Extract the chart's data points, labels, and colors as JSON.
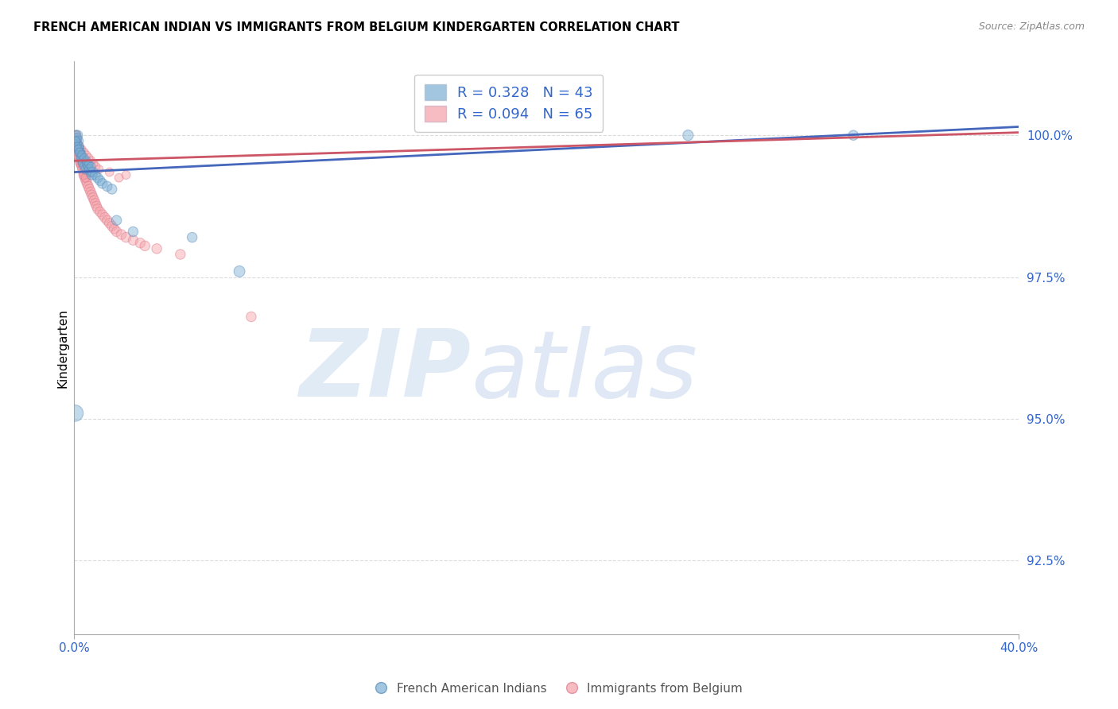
{
  "title": "FRENCH AMERICAN INDIAN VS IMMIGRANTS FROM BELGIUM KINDERGARTEN CORRELATION CHART",
  "source": "Source: ZipAtlas.com",
  "ylabel": "Kindergarten",
  "yaxis_ticks": [
    92.5,
    95.0,
    97.5,
    100.0
  ],
  "yaxis_labels": [
    "92.5%",
    "95.0%",
    "97.5%",
    "100.0%"
  ],
  "xlim": [
    0.0,
    40.0
  ],
  "ylim": [
    91.2,
    101.3
  ],
  "blue_color": "#7BAFD4",
  "blue_edge_color": "#5588BB",
  "pink_color": "#F4A0A8",
  "pink_edge_color": "#DD7788",
  "blue_line_color": "#4466BB",
  "pink_line_color": "#CC5566",
  "blue_R": 0.328,
  "blue_N": 43,
  "pink_R": 0.094,
  "pink_N": 65,
  "blue_label": "French American Indians",
  "pink_label": "Immigrants from Belgium",
  "blue_line_x": [
    0.0,
    40.0
  ],
  "blue_line_y": [
    99.35,
    100.15
  ],
  "pink_line_x": [
    0.0,
    40.0
  ],
  "pink_line_y": [
    99.55,
    100.05
  ],
  "blue_scatter_x": [
    0.05,
    0.08,
    0.1,
    0.12,
    0.15,
    0.18,
    0.2,
    0.22,
    0.25,
    0.28,
    0.3,
    0.35,
    0.4,
    0.45,
    0.5,
    0.55,
    0.6,
    0.65,
    0.7,
    0.75,
    0.8,
    0.9,
    1.0,
    1.1,
    1.2,
    1.4,
    1.6,
    1.8,
    2.5,
    5.0,
    0.07,
    0.13,
    0.17,
    0.23,
    0.33,
    0.42,
    0.52,
    0.62,
    0.72,
    7.0,
    26.0,
    33.0,
    0.04
  ],
  "blue_scatter_y": [
    99.9,
    100.0,
    99.85,
    99.95,
    100.0,
    99.9,
    99.8,
    99.75,
    99.7,
    99.65,
    99.6,
    99.55,
    99.5,
    99.45,
    99.4,
    99.5,
    99.45,
    99.4,
    99.35,
    99.3,
    99.35,
    99.3,
    99.25,
    99.2,
    99.15,
    99.1,
    99.05,
    98.5,
    98.3,
    98.2,
    99.9,
    99.8,
    99.75,
    99.7,
    99.65,
    99.6,
    99.55,
    99.5,
    99.45,
    97.6,
    100.0,
    100.0,
    95.1
  ],
  "blue_scatter_size": [
    100,
    80,
    80,
    80,
    80,
    80,
    80,
    80,
    80,
    80,
    80,
    80,
    80,
    80,
    80,
    80,
    80,
    80,
    80,
    80,
    80,
    80,
    80,
    80,
    80,
    80,
    80,
    80,
    80,
    80,
    60,
    60,
    60,
    60,
    60,
    60,
    60,
    60,
    60,
    100,
    90,
    80,
    220
  ],
  "pink_scatter_x": [
    0.05,
    0.07,
    0.1,
    0.12,
    0.14,
    0.16,
    0.18,
    0.2,
    0.22,
    0.25,
    0.28,
    0.3,
    0.33,
    0.36,
    0.4,
    0.43,
    0.46,
    0.5,
    0.55,
    0.6,
    0.65,
    0.7,
    0.75,
    0.8,
    0.85,
    0.9,
    0.95,
    1.0,
    1.1,
    1.2,
    1.3,
    1.4,
    1.5,
    1.6,
    1.7,
    1.8,
    2.0,
    2.2,
    2.5,
    2.8,
    3.0,
    3.5,
    4.5,
    0.09,
    0.13,
    0.17,
    0.23,
    0.32,
    0.42,
    0.52,
    0.62,
    0.72,
    0.82,
    0.92,
    1.05,
    1.5,
    2.2,
    7.5,
    0.35,
    0.45,
    0.55,
    0.65,
    1.9,
    0.38,
    0.48
  ],
  "pink_scatter_y": [
    99.95,
    100.0,
    99.9,
    99.85,
    99.8,
    99.75,
    99.7,
    99.65,
    99.6,
    99.55,
    99.5,
    99.5,
    99.45,
    99.4,
    99.35,
    99.3,
    99.25,
    99.2,
    99.15,
    99.1,
    99.05,
    99.0,
    98.95,
    98.9,
    98.85,
    98.8,
    98.75,
    98.7,
    98.65,
    98.6,
    98.55,
    98.5,
    98.45,
    98.4,
    98.35,
    98.3,
    98.25,
    98.2,
    98.15,
    98.1,
    98.05,
    98.0,
    97.9,
    100.0,
    99.9,
    99.85,
    99.8,
    99.75,
    99.7,
    99.65,
    99.6,
    99.55,
    99.5,
    99.45,
    99.4,
    99.35,
    99.3,
    96.8,
    99.5,
    99.45,
    99.4,
    99.35,
    99.25,
    99.3,
    99.25
  ],
  "pink_scatter_size": [
    80,
    80,
    80,
    80,
    80,
    80,
    80,
    80,
    80,
    80,
    80,
    80,
    80,
    80,
    80,
    80,
    80,
    80,
    80,
    80,
    80,
    80,
    80,
    80,
    80,
    80,
    80,
    80,
    80,
    80,
    80,
    80,
    80,
    80,
    80,
    80,
    80,
    80,
    80,
    80,
    80,
    80,
    80,
    60,
    60,
    60,
    60,
    60,
    60,
    60,
    60,
    60,
    60,
    60,
    60,
    60,
    60,
    80,
    60,
    60,
    60,
    60,
    60,
    60,
    60
  ]
}
